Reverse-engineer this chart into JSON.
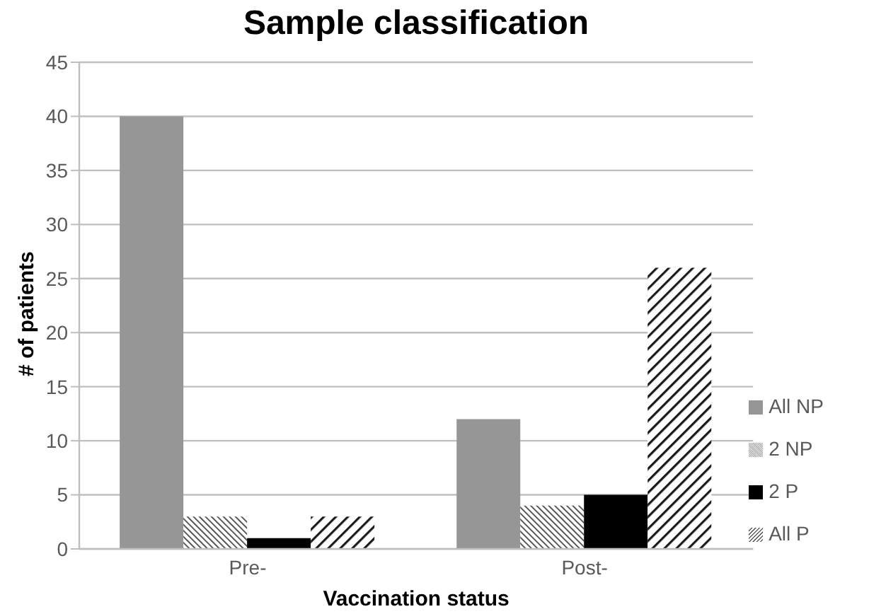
{
  "chart_data": {
    "type": "bar",
    "title": "Sample classification",
    "xlabel": "Vaccination status",
    "ylabel": "# of patients",
    "categories": [
      "Pre-",
      "Post-"
    ],
    "series": [
      {
        "name": "All NP",
        "color": "#969696",
        "values": [
          40,
          12
        ]
      },
      {
        "name": "2 NP",
        "color": "#333333",
        "values": [
          3,
          4
        ]
      },
      {
        "name": "2 P",
        "color": "#000000",
        "values": [
          1,
          5
        ]
      },
      {
        "name": "All P",
        "color": "#1a1a1a",
        "values": [
          3,
          26
        ]
      }
    ],
    "ylim": [
      0,
      45
    ],
    "yticks": [
      0,
      5,
      10,
      15,
      20,
      25,
      30,
      35,
      40,
      45
    ],
    "grid": "y",
    "legend": "right"
  }
}
